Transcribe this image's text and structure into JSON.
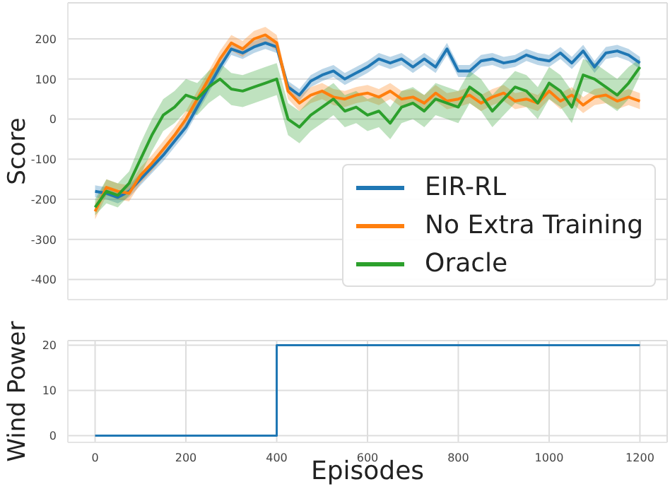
{
  "chart_data": [
    {
      "type": "line",
      "ylabel": "Score",
      "x": [
        0,
        25,
        50,
        75,
        100,
        125,
        150,
        175,
        200,
        225,
        250,
        275,
        300,
        325,
        350,
        375,
        400,
        425,
        450,
        475,
        500,
        525,
        550,
        575,
        600,
        625,
        650,
        675,
        700,
        725,
        750,
        775,
        800,
        825,
        850,
        875,
        900,
        925,
        950,
        975,
        1000,
        1025,
        1050,
        1075,
        1100,
        1125,
        1150,
        1175,
        1200
      ],
      "xlim": [
        -60,
        1260
      ],
      "xticks": [
        0,
        200,
        400,
        600,
        800,
        1000,
        1200
      ],
      "ylim": [
        -450,
        290
      ],
      "yticks": [
        -400,
        -300,
        -200,
        -100,
        0,
        100,
        200
      ],
      "grid": true,
      "legend": "bottom right",
      "tick_labels": "y",
      "series": [
        {
          "name": "EIR-RL",
          "color": "#1f77b4",
          "values": [
            -180,
            -185,
            -195,
            -180,
            -150,
            -120,
            -90,
            -55,
            -20,
            30,
            80,
            130,
            175,
            165,
            180,
            190,
            180,
            80,
            60,
            95,
            110,
            120,
            100,
            115,
            130,
            150,
            140,
            150,
            130,
            150,
            130,
            175,
            120,
            120,
            145,
            150,
            140,
            145,
            160,
            150,
            145,
            165,
            140,
            170,
            130,
            165,
            170,
            160,
            140
          ],
          "lower": [
            -195,
            -200,
            -210,
            -195,
            -165,
            -135,
            -105,
            -70,
            -35,
            15,
            65,
            115,
            160,
            150,
            165,
            175,
            165,
            65,
            45,
            80,
            95,
            105,
            85,
            100,
            115,
            135,
            125,
            135,
            115,
            135,
            115,
            160,
            105,
            105,
            130,
            135,
            125,
            130,
            145,
            135,
            130,
            150,
            125,
            155,
            115,
            150,
            155,
            145,
            125
          ],
          "upper": [
            -165,
            -170,
            -180,
            -165,
            -135,
            -105,
            -75,
            -40,
            -5,
            45,
            95,
            145,
            190,
            180,
            195,
            205,
            195,
            95,
            75,
            110,
            125,
            135,
            115,
            130,
            145,
            165,
            155,
            165,
            145,
            165,
            145,
            190,
            135,
            135,
            160,
            165,
            155,
            160,
            175,
            165,
            160,
            180,
            155,
            185,
            145,
            180,
            185,
            175,
            155
          ]
        },
        {
          "name": "No Extra Training",
          "color": "#ff7f0e",
          "values": [
            -230,
            -170,
            -180,
            -185,
            -140,
            -110,
            -75,
            -40,
            0,
            50,
            100,
            150,
            190,
            175,
            200,
            210,
            190,
            70,
            40,
            60,
            70,
            55,
            50,
            60,
            65,
            55,
            70,
            50,
            55,
            40,
            65,
            45,
            50,
            60,
            40,
            55,
            65,
            45,
            50,
            40,
            70,
            45,
            60,
            35,
            55,
            60,
            45,
            55,
            45
          ],
          "lower": [
            -250,
            -190,
            -200,
            -205,
            -160,
            -130,
            -95,
            -60,
            -20,
            30,
            80,
            130,
            170,
            155,
            180,
            190,
            170,
            50,
            20,
            40,
            50,
            35,
            30,
            40,
            45,
            35,
            50,
            30,
            35,
            20,
            45,
            25,
            30,
            40,
            20,
            35,
            45,
            25,
            30,
            20,
            50,
            25,
            40,
            15,
            35,
            40,
            25,
            35,
            25
          ],
          "upper": [
            -210,
            -150,
            -160,
            -165,
            -120,
            -90,
            -55,
            -20,
            20,
            70,
            120,
            170,
            210,
            195,
            220,
            230,
            210,
            90,
            60,
            80,
            90,
            75,
            70,
            80,
            85,
            75,
            90,
            70,
            75,
            60,
            85,
            65,
            70,
            80,
            60,
            75,
            85,
            65,
            70,
            60,
            90,
            65,
            80,
            55,
            75,
            80,
            65,
            75,
            65
          ]
        },
        {
          "name": "Oracle",
          "color": "#2ca02c",
          "values": [
            -220,
            -180,
            -190,
            -160,
            -100,
            -40,
            10,
            30,
            60,
            50,
            80,
            100,
            75,
            70,
            80,
            90,
            100,
            0,
            -20,
            10,
            30,
            50,
            20,
            30,
            10,
            20,
            -10,
            30,
            40,
            20,
            50,
            40,
            30,
            80,
            60,
            20,
            50,
            80,
            70,
            40,
            90,
            70,
            30,
            110,
            100,
            80,
            60,
            90,
            130
          ],
          "lower": [
            -240,
            -210,
            -220,
            -190,
            -140,
            -80,
            -30,
            -10,
            20,
            10,
            40,
            60,
            35,
            30,
            40,
            50,
            60,
            -40,
            -60,
            -30,
            -10,
            10,
            -20,
            -10,
            -30,
            -20,
            -50,
            -10,
            0,
            -20,
            10,
            0,
            -10,
            40,
            20,
            -20,
            10,
            40,
            30,
            0,
            50,
            30,
            -10,
            70,
            60,
            40,
            20,
            50,
            110
          ],
          "upper": [
            -200,
            -150,
            -160,
            -130,
            -60,
            0,
            50,
            70,
            100,
            90,
            120,
            140,
            115,
            110,
            120,
            130,
            140,
            40,
            20,
            50,
            70,
            90,
            60,
            70,
            50,
            60,
            30,
            70,
            80,
            60,
            90,
            80,
            70,
            120,
            100,
            60,
            90,
            120,
            110,
            80,
            130,
            110,
            70,
            150,
            140,
            120,
            100,
            130,
            150
          ]
        }
      ]
    },
    {
      "type": "step",
      "xlabel": "Episodes",
      "ylabel": "Wind Power",
      "x": [
        0,
        400,
        1200
      ],
      "xlim": [
        -60,
        1260
      ],
      "xticks": [
        0,
        200,
        400,
        600,
        800,
        1000,
        1200
      ],
      "ylim": [
        -1.5,
        21
      ],
      "yticks": [
        0,
        10,
        20
      ],
      "grid": true,
      "series": [
        {
          "color": "#1f77b4",
          "values": [
            0,
            20,
            20
          ]
        }
      ]
    }
  ]
}
